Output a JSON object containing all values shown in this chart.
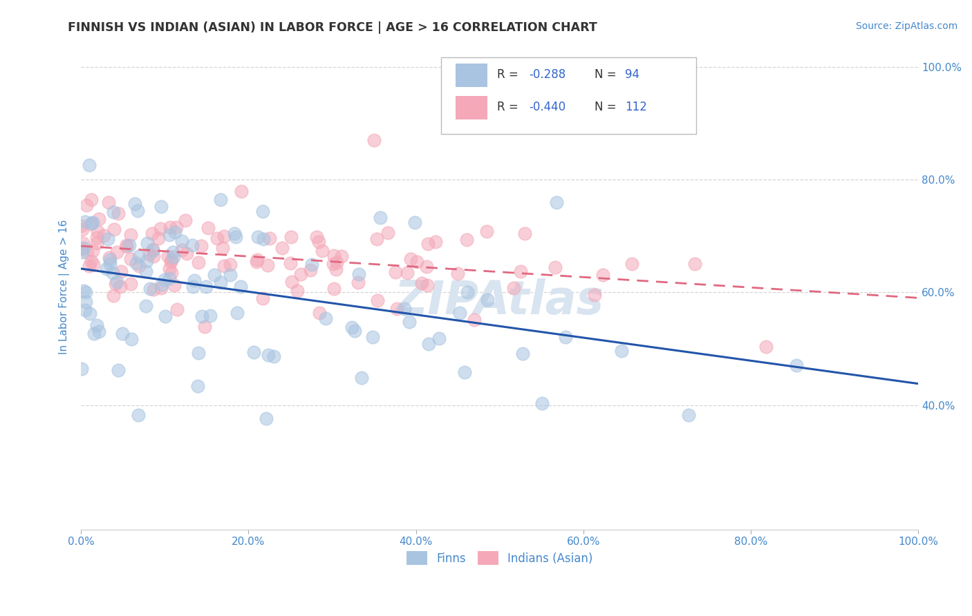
{
  "title": "FINNISH VS INDIAN (ASIAN) IN LABOR FORCE | AGE > 16 CORRELATION CHART",
  "source_text": "Source: ZipAtlas.com",
  "ylabel": "In Labor Force | Age > 16",
  "x_min": 0.0,
  "x_max": 1.0,
  "y_min": 0.18,
  "y_max": 1.04,
  "finn_R": -0.288,
  "finn_N": 94,
  "indian_R": -0.44,
  "indian_N": 112,
  "finn_color": "#a8c4e0",
  "indian_color": "#f4a8b8",
  "finn_line_color": "#2255aa",
  "indian_line_color": "#e06880",
  "background_color": "#ffffff",
  "grid_color": "#cccccc",
  "title_color": "#333333",
  "axis_label_color": "#4488cc",
  "watermark_color": "#d8e4f0",
  "y_ticks": [
    0.4,
    0.6,
    0.8,
    1.0
  ],
  "y_ticklabels": [
    "40.0%",
    "60.0%",
    "80.0%",
    "100.0%"
  ],
  "x_ticks": [
    0.0,
    0.2,
    0.4,
    0.6,
    0.8,
    1.0
  ],
  "x_ticklabels": [
    "0.0%",
    "20.0%",
    "40.0%",
    "60.0%",
    "80.0%",
    "100.0%"
  ]
}
